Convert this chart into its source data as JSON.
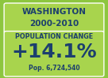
{
  "title_line1": "WASHINGTON",
  "title_line2": "2000-2010",
  "label": "POPULATION CHANGE",
  "big_value": "+14.1%",
  "sub_value": "Pop. 6,724,540",
  "bg_color_outer": "#8dc63f",
  "bg_color_top_box": "#a8d44d",
  "bg_color_bottom": "#a8d44d",
  "title_color": "#1c3f6e",
  "label_color": "#1c3f6e",
  "value_color": "#1c3f6e",
  "sub_color": "#1c3f6e",
  "title_fontsize": 7.5,
  "label_fontsize": 5.8,
  "value_fontsize": 18,
  "sub_fontsize": 5.5
}
